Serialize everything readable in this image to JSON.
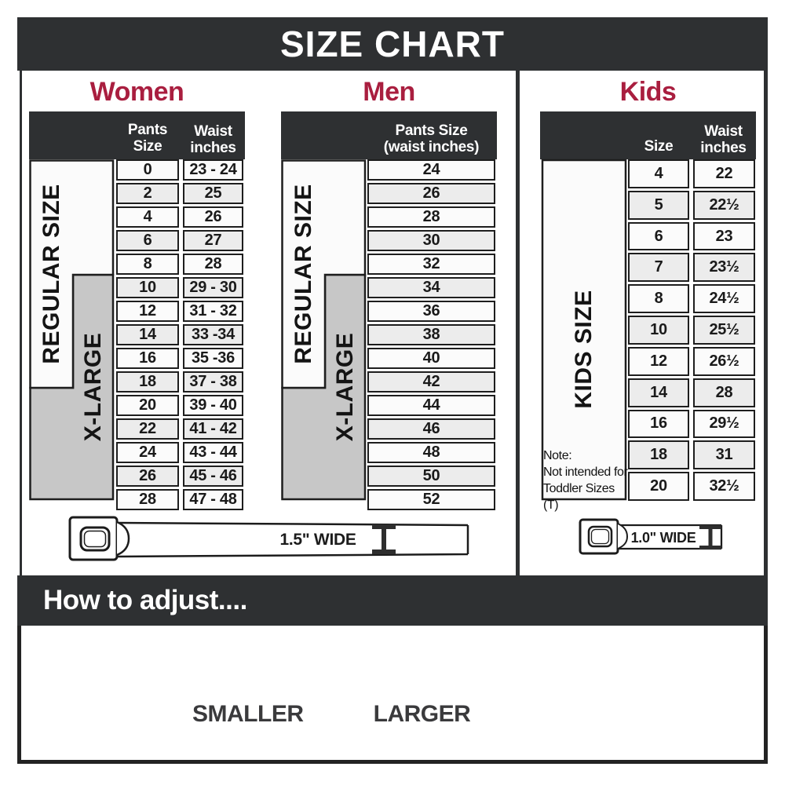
{
  "title": "SIZE CHART",
  "sections": {
    "women": {
      "heading": "Women",
      "col1_header": "Pants Size",
      "col2_header_line1": "Waist",
      "col2_header_line2": "inches",
      "regular_label": "REGULAR SIZE",
      "xlarge_label": "X-LARGE"
    },
    "men": {
      "heading": "Men",
      "col_header_line1": "Pants Size",
      "col_header_line2": "(waist inches)",
      "regular_label": "REGULAR SIZE",
      "xlarge_label": "X-LARGE"
    },
    "kids": {
      "heading": "Kids",
      "col1_header": "Size",
      "col2_header_line1": "Waist",
      "col2_header_line2": "inches",
      "side_label": "KIDS SIZE",
      "note_line1": "Note:",
      "note_line2": "Not intended for",
      "note_line3": "Toddler Sizes (T)"
    }
  },
  "belts": {
    "adult_width_label": "1.5\" WIDE",
    "kids_width_label": "1.0\" WIDE"
  },
  "how_to_adjust": {
    "heading": "How to adjust....",
    "smaller_label": "SMALLER",
    "larger_label": "LARGER"
  },
  "colors": {
    "header_dark": "#2e3032",
    "accent_red": "#A91E3F",
    "xlarge_gray": "#c7c7c7",
    "row_alt_gray": "#ececec",
    "row_white": "#fbfbfb",
    "table_border": "#1e1e1e"
  },
  "chart_data": [
    {
      "type": "table",
      "title": "Women",
      "columns": [
        "Pants Size",
        "Waist inches"
      ],
      "rows": [
        [
          "0",
          "23 - 24"
        ],
        [
          "2",
          "25"
        ],
        [
          "4",
          "26"
        ],
        [
          "6",
          "27"
        ],
        [
          "8",
          "28"
        ],
        [
          "10",
          "29 - 30"
        ],
        [
          "12",
          "31 - 32"
        ],
        [
          "14",
          "33 -34"
        ],
        [
          "16",
          "35 -36"
        ],
        [
          "18",
          "37 - 38"
        ],
        [
          "20",
          "39 - 40"
        ],
        [
          "22",
          "41 - 42"
        ],
        [
          "24",
          "43 - 44"
        ],
        [
          "26",
          "45 - 46"
        ],
        [
          "28",
          "47 - 48"
        ]
      ],
      "size_groups": {
        "REGULAR SIZE": "pants 0-18",
        "X-LARGE": "pants 10-28"
      },
      "belt_width": "1.5\" WIDE"
    },
    {
      "type": "table",
      "title": "Men",
      "columns": [
        "Pants Size (waist inches)"
      ],
      "rows": [
        [
          "24"
        ],
        [
          "26"
        ],
        [
          "28"
        ],
        [
          "30"
        ],
        [
          "32"
        ],
        [
          "34"
        ],
        [
          "36"
        ],
        [
          "38"
        ],
        [
          "40"
        ],
        [
          "42"
        ],
        [
          "44"
        ],
        [
          "46"
        ],
        [
          "48"
        ],
        [
          "50"
        ],
        [
          "52"
        ]
      ],
      "size_groups": {
        "REGULAR SIZE": "24-42",
        "X-LARGE": "34-52"
      },
      "belt_width": "1.5\" WIDE"
    },
    {
      "type": "table",
      "title": "Kids",
      "columns": [
        "Size",
        "Waist inches"
      ],
      "rows": [
        [
          "4",
          "22"
        ],
        [
          "5",
          "22½"
        ],
        [
          "6",
          "23"
        ],
        [
          "7",
          "23½"
        ],
        [
          "8",
          "24½"
        ],
        [
          "10",
          "25½"
        ],
        [
          "12",
          "26½"
        ],
        [
          "14",
          "28"
        ],
        [
          "16",
          "29½"
        ],
        [
          "18",
          "31"
        ],
        [
          "20",
          "32½"
        ]
      ],
      "size_groups": {
        "KIDS SIZE": "4-20"
      },
      "note": "Note: Not intended for Toddler Sizes (T)",
      "belt_width": "1.0\" WIDE"
    }
  ]
}
